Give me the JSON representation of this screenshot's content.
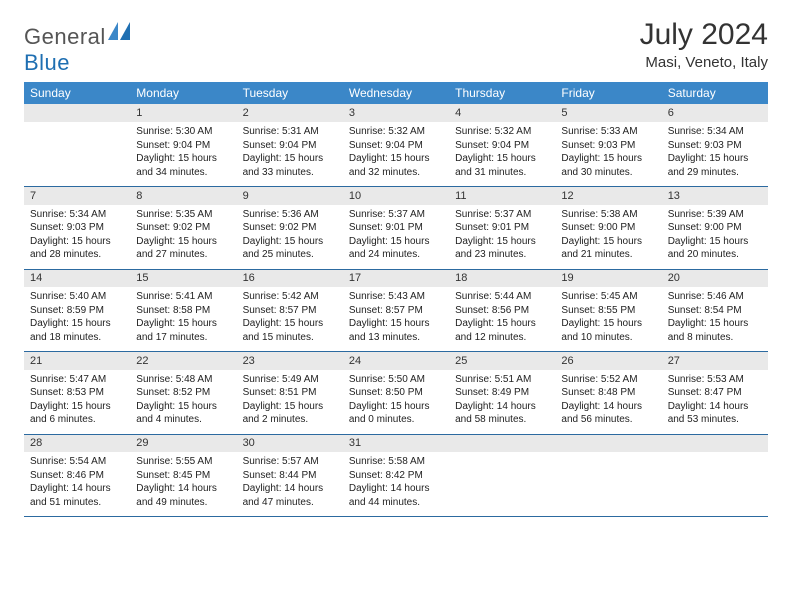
{
  "brand": {
    "part1": "General",
    "part2": "Blue"
  },
  "title": "July 2024",
  "location": "Masi, Veneto, Italy",
  "colors": {
    "header_bg": "#3b87c8",
    "header_fg": "#ffffff",
    "daynum_bg": "#e9e9e9",
    "rule": "#2c6aa0",
    "logo_accent": "#1f6fb2",
    "text": "#333333"
  },
  "typography": {
    "body_fontsize": 10,
    "header_fontsize": 12,
    "title_fontsize": 30
  },
  "weekdays": [
    "Sunday",
    "Monday",
    "Tuesday",
    "Wednesday",
    "Thursday",
    "Friday",
    "Saturday"
  ],
  "weeks": [
    [
      {
        "n": "",
        "lines": []
      },
      {
        "n": "1",
        "lines": [
          "Sunrise: 5:30 AM",
          "Sunset: 9:04 PM",
          "Daylight: 15 hours",
          "and 34 minutes."
        ]
      },
      {
        "n": "2",
        "lines": [
          "Sunrise: 5:31 AM",
          "Sunset: 9:04 PM",
          "Daylight: 15 hours",
          "and 33 minutes."
        ]
      },
      {
        "n": "3",
        "lines": [
          "Sunrise: 5:32 AM",
          "Sunset: 9:04 PM",
          "Daylight: 15 hours",
          "and 32 minutes."
        ]
      },
      {
        "n": "4",
        "lines": [
          "Sunrise: 5:32 AM",
          "Sunset: 9:04 PM",
          "Daylight: 15 hours",
          "and 31 minutes."
        ]
      },
      {
        "n": "5",
        "lines": [
          "Sunrise: 5:33 AM",
          "Sunset: 9:03 PM",
          "Daylight: 15 hours",
          "and 30 minutes."
        ]
      },
      {
        "n": "6",
        "lines": [
          "Sunrise: 5:34 AM",
          "Sunset: 9:03 PM",
          "Daylight: 15 hours",
          "and 29 minutes."
        ]
      }
    ],
    [
      {
        "n": "7",
        "lines": [
          "Sunrise: 5:34 AM",
          "Sunset: 9:03 PM",
          "Daylight: 15 hours",
          "and 28 minutes."
        ]
      },
      {
        "n": "8",
        "lines": [
          "Sunrise: 5:35 AM",
          "Sunset: 9:02 PM",
          "Daylight: 15 hours",
          "and 27 minutes."
        ]
      },
      {
        "n": "9",
        "lines": [
          "Sunrise: 5:36 AM",
          "Sunset: 9:02 PM",
          "Daylight: 15 hours",
          "and 25 minutes."
        ]
      },
      {
        "n": "10",
        "lines": [
          "Sunrise: 5:37 AM",
          "Sunset: 9:01 PM",
          "Daylight: 15 hours",
          "and 24 minutes."
        ]
      },
      {
        "n": "11",
        "lines": [
          "Sunrise: 5:37 AM",
          "Sunset: 9:01 PM",
          "Daylight: 15 hours",
          "and 23 minutes."
        ]
      },
      {
        "n": "12",
        "lines": [
          "Sunrise: 5:38 AM",
          "Sunset: 9:00 PM",
          "Daylight: 15 hours",
          "and 21 minutes."
        ]
      },
      {
        "n": "13",
        "lines": [
          "Sunrise: 5:39 AM",
          "Sunset: 9:00 PM",
          "Daylight: 15 hours",
          "and 20 minutes."
        ]
      }
    ],
    [
      {
        "n": "14",
        "lines": [
          "Sunrise: 5:40 AM",
          "Sunset: 8:59 PM",
          "Daylight: 15 hours",
          "and 18 minutes."
        ]
      },
      {
        "n": "15",
        "lines": [
          "Sunrise: 5:41 AM",
          "Sunset: 8:58 PM",
          "Daylight: 15 hours",
          "and 17 minutes."
        ]
      },
      {
        "n": "16",
        "lines": [
          "Sunrise: 5:42 AM",
          "Sunset: 8:57 PM",
          "Daylight: 15 hours",
          "and 15 minutes."
        ]
      },
      {
        "n": "17",
        "lines": [
          "Sunrise: 5:43 AM",
          "Sunset: 8:57 PM",
          "Daylight: 15 hours",
          "and 13 minutes."
        ]
      },
      {
        "n": "18",
        "lines": [
          "Sunrise: 5:44 AM",
          "Sunset: 8:56 PM",
          "Daylight: 15 hours",
          "and 12 minutes."
        ]
      },
      {
        "n": "19",
        "lines": [
          "Sunrise: 5:45 AM",
          "Sunset: 8:55 PM",
          "Daylight: 15 hours",
          "and 10 minutes."
        ]
      },
      {
        "n": "20",
        "lines": [
          "Sunrise: 5:46 AM",
          "Sunset: 8:54 PM",
          "Daylight: 15 hours",
          "and 8 minutes."
        ]
      }
    ],
    [
      {
        "n": "21",
        "lines": [
          "Sunrise: 5:47 AM",
          "Sunset: 8:53 PM",
          "Daylight: 15 hours",
          "and 6 minutes."
        ]
      },
      {
        "n": "22",
        "lines": [
          "Sunrise: 5:48 AM",
          "Sunset: 8:52 PM",
          "Daylight: 15 hours",
          "and 4 minutes."
        ]
      },
      {
        "n": "23",
        "lines": [
          "Sunrise: 5:49 AM",
          "Sunset: 8:51 PM",
          "Daylight: 15 hours",
          "and 2 minutes."
        ]
      },
      {
        "n": "24",
        "lines": [
          "Sunrise: 5:50 AM",
          "Sunset: 8:50 PM",
          "Daylight: 15 hours",
          "and 0 minutes."
        ]
      },
      {
        "n": "25",
        "lines": [
          "Sunrise: 5:51 AM",
          "Sunset: 8:49 PM",
          "Daylight: 14 hours",
          "and 58 minutes."
        ]
      },
      {
        "n": "26",
        "lines": [
          "Sunrise: 5:52 AM",
          "Sunset: 8:48 PM",
          "Daylight: 14 hours",
          "and 56 minutes."
        ]
      },
      {
        "n": "27",
        "lines": [
          "Sunrise: 5:53 AM",
          "Sunset: 8:47 PM",
          "Daylight: 14 hours",
          "and 53 minutes."
        ]
      }
    ],
    [
      {
        "n": "28",
        "lines": [
          "Sunrise: 5:54 AM",
          "Sunset: 8:46 PM",
          "Daylight: 14 hours",
          "and 51 minutes."
        ]
      },
      {
        "n": "29",
        "lines": [
          "Sunrise: 5:55 AM",
          "Sunset: 8:45 PM",
          "Daylight: 14 hours",
          "and 49 minutes."
        ]
      },
      {
        "n": "30",
        "lines": [
          "Sunrise: 5:57 AM",
          "Sunset: 8:44 PM",
          "Daylight: 14 hours",
          "and 47 minutes."
        ]
      },
      {
        "n": "31",
        "lines": [
          "Sunrise: 5:58 AM",
          "Sunset: 8:42 PM",
          "Daylight: 14 hours",
          "and 44 minutes."
        ]
      },
      {
        "n": "",
        "lines": []
      },
      {
        "n": "",
        "lines": []
      },
      {
        "n": "",
        "lines": []
      }
    ]
  ]
}
